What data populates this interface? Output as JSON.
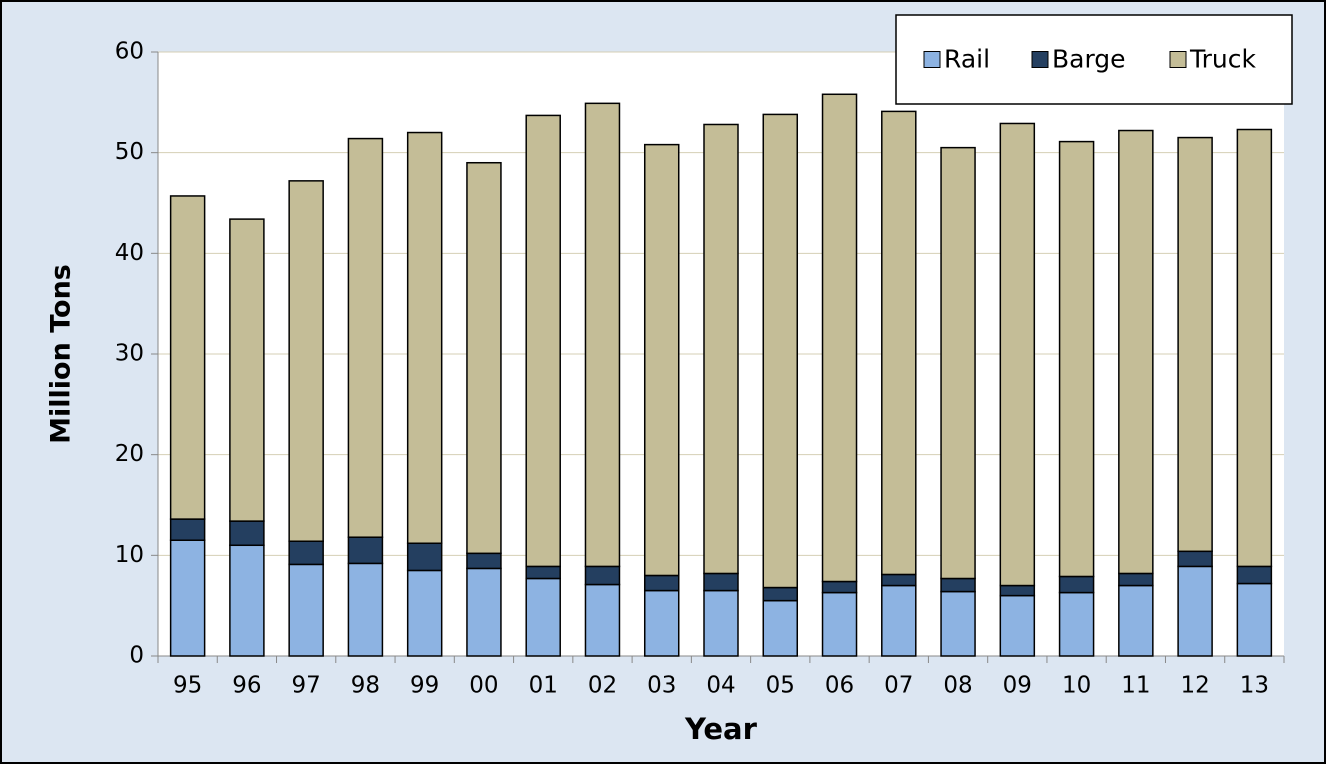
{
  "chart_data": {
    "type": "stacked_bar",
    "xlabel": "Year",
    "ylabel": "Million Tons",
    "categories": [
      "95",
      "96",
      "97",
      "98",
      "99",
      "00",
      "01",
      "02",
      "03",
      "04",
      "05",
      "06",
      "07",
      "08",
      "09",
      "10",
      "11",
      "12",
      "13"
    ],
    "series": [
      {
        "name": "Rail",
        "color": "#8db3e2",
        "values": [
          11.5,
          11.0,
          9.1,
          9.2,
          8.5,
          8.7,
          7.7,
          7.1,
          6.5,
          6.5,
          5.5,
          6.3,
          7.0,
          6.4,
          6.0,
          6.3,
          7.0,
          8.9,
          7.2
        ]
      },
      {
        "name": "Barge",
        "color": "#243f60",
        "values": [
          2.1,
          2.4,
          2.3,
          2.6,
          2.7,
          1.5,
          1.2,
          1.8,
          1.5,
          1.7,
          1.3,
          1.1,
          1.1,
          1.3,
          1.0,
          1.6,
          1.2,
          1.5,
          1.7
        ]
      },
      {
        "name": "Truck",
        "color": "#c4bd97",
        "values": [
          32.1,
          30.0,
          35.8,
          39.6,
          40.8,
          38.8,
          44.8,
          46.0,
          42.8,
          44.6,
          47.0,
          48.4,
          46.0,
          42.8,
          45.9,
          43.2,
          44.0,
          41.1,
          43.4
        ]
      }
    ],
    "ylim": [
      0,
      60
    ],
    "yticks": [
      0,
      10,
      20,
      30,
      40,
      50,
      60
    ],
    "grid": true,
    "legend": "top-right"
  }
}
